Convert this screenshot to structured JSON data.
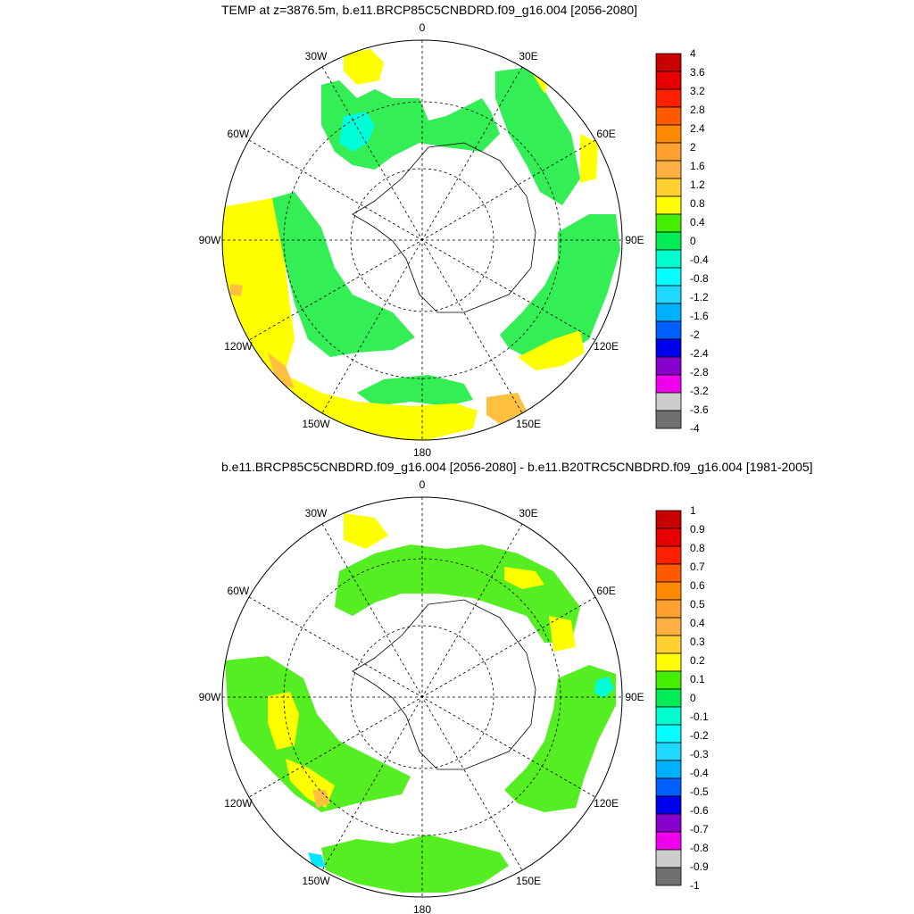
{
  "panels": [
    {
      "title": "TEMP at z=3876.5m, b.e11.BRCP85C5CNBDRD.f09_g16.004 [2056-2080]",
      "lon_labels": [
        "0",
        "30E",
        "60E",
        "90E",
        "120E",
        "150E",
        "180",
        "150W",
        "120W",
        "90W",
        "60W",
        "30W"
      ],
      "colorbar_labels": [
        "4",
        "3.6",
        "3.2",
        "2.8",
        "2.4",
        "2",
        "1.6",
        "1.2",
        "0.8",
        "0.4",
        "0",
        "-0.4",
        "-0.8",
        "-1.2",
        "-1.6",
        "-2",
        "-2.4",
        "-2.8",
        "-3.2",
        "-3.6",
        "-4"
      ],
      "colorbar_colors": [
        "#c80000",
        "#e60000",
        "#ff2000",
        "#ff5a00",
        "#ff8a00",
        "#ffa030",
        "#ffb040",
        "#ffd030",
        "#ffff00",
        "#44ee00",
        "#00ee55",
        "#00ffd0",
        "#00ffff",
        "#20d8ff",
        "#00b0ff",
        "#0060ff",
        "#0000ee",
        "#8800cc",
        "#ee00ee",
        "#cccccc",
        "#707070"
      ]
    },
    {
      "title": "b.e11.BRCP85C5CNBDRD.f09_g16.004 [2056-2080] - b.e11.B20TRC5CNBDRD.f09_g16.004 [1981-2005]",
      "lon_labels": [
        "0",
        "30E",
        "60E",
        "90E",
        "120E",
        "150E",
        "180",
        "150W",
        "120W",
        "90W",
        "60W",
        "30W"
      ],
      "colorbar_labels": [
        "1",
        "0.9",
        "0.8",
        "0.7",
        "0.6",
        "0.5",
        "0.4",
        "0.3",
        "0.2",
        "0.1",
        "0",
        "-0.1",
        "-0.2",
        "-0.3",
        "-0.4",
        "-0.5",
        "-0.6",
        "-0.7",
        "-0.8",
        "-0.9",
        "-1"
      ],
      "colorbar_colors": [
        "#c80000",
        "#e60000",
        "#ff2000",
        "#ff5a00",
        "#ff8a00",
        "#ffa030",
        "#ffb040",
        "#ffd030",
        "#ffff00",
        "#44ee00",
        "#00ee55",
        "#00ffd0",
        "#00ffff",
        "#20d8ff",
        "#00b0ff",
        "#0060ff",
        "#0000ee",
        "#8800cc",
        "#ee00ee",
        "#cccccc",
        "#707070"
      ]
    }
  ],
  "colors": {
    "green": "#55ee22",
    "green_mid": "#33ee55",
    "yellow": "#ffff00",
    "orange_light": "#ffc040",
    "cyan": "#00ffd8",
    "cyan_light": "#00e8ff"
  }
}
